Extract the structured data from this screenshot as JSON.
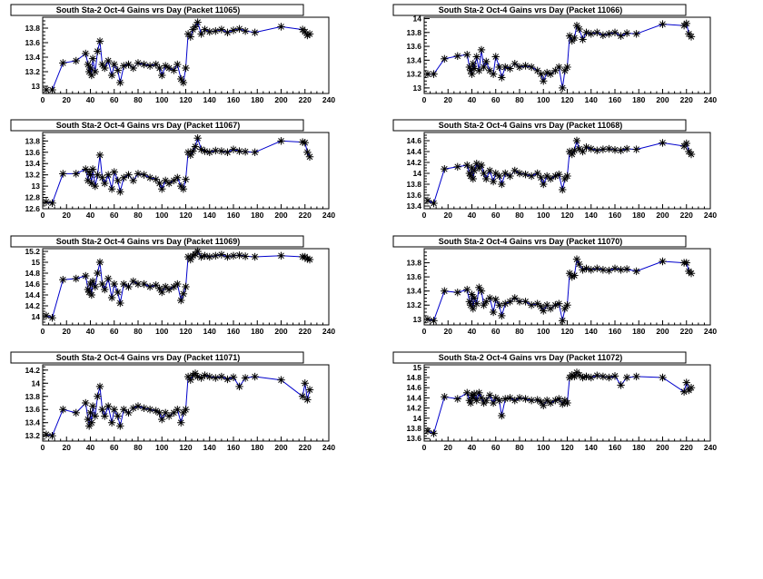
{
  "chart_data": [
    {
      "type": "scatter",
      "title": "South Sta-2 Oct-4 Gains vrs Day (Packet 11065)",
      "xlim": [
        0,
        240
      ],
      "ylim": [
        12.9,
        13.95
      ],
      "xticks": [
        0,
        20,
        40,
        60,
        80,
        100,
        120,
        140,
        160,
        180,
        200,
        220,
        240
      ],
      "yticks": [
        13,
        13.2,
        13.4,
        13.6,
        13.8
      ],
      "x": [
        3,
        8,
        17,
        28,
        36,
        38,
        39,
        40,
        41,
        42,
        44,
        46,
        48,
        50,
        52,
        55,
        58,
        60,
        63,
        65,
        68,
        72,
        76,
        80,
        85,
        90,
        95,
        98,
        100,
        103,
        106,
        110,
        113,
        116,
        118,
        120,
        122,
        124,
        126,
        128,
        130,
        133,
        136,
        140,
        145,
        150,
        155,
        160,
        165,
        170,
        178,
        200,
        218,
        220,
        222,
        224
      ],
      "y": [
        12.95,
        12.95,
        13.32,
        13.35,
        13.45,
        13.3,
        13.2,
        13.25,
        13.15,
        13.38,
        13.2,
        13.48,
        13.62,
        13.3,
        13.25,
        13.35,
        13.15,
        13.3,
        13.22,
        13.05,
        13.28,
        13.3,
        13.25,
        13.32,
        13.3,
        13.28,
        13.3,
        13.25,
        13.15,
        13.28,
        13.25,
        13.22,
        13.3,
        13.1,
        13.05,
        13.25,
        13.72,
        13.68,
        13.78,
        13.82,
        13.88,
        13.72,
        13.78,
        13.75,
        13.76,
        13.78,
        13.74,
        13.77,
        13.79,
        13.76,
        13.74,
        13.82,
        13.78,
        13.75,
        13.7,
        13.72
      ]
    },
    {
      "type": "scatter",
      "title": "South Sta-2 Oct-4 Gains vrs Day (Packet 11066)",
      "xlim": [
        0,
        240
      ],
      "ylim": [
        12.92,
        14.02
      ],
      "xticks": [
        0,
        20,
        40,
        60,
        80,
        100,
        120,
        140,
        160,
        180,
        200,
        220,
        240
      ],
      "yticks": [
        13,
        13.2,
        13.4,
        13.6,
        13.8,
        14
      ],
      "x": [
        3,
        8,
        17,
        28,
        36,
        38,
        39,
        40,
        41,
        42,
        44,
        46,
        48,
        50,
        52,
        55,
        58,
        60,
        63,
        65,
        68,
        72,
        76,
        80,
        85,
        90,
        95,
        98,
        100,
        103,
        106,
        110,
        113,
        116,
        118,
        120,
        122,
        124,
        126,
        128,
        130,
        133,
        136,
        140,
        145,
        150,
        155,
        160,
        165,
        170,
        178,
        200,
        218,
        220,
        222,
        224
      ],
      "y": [
        13.2,
        13.2,
        13.42,
        13.46,
        13.48,
        13.3,
        13.25,
        13.2,
        13.35,
        13.28,
        13.45,
        13.25,
        13.55,
        13.3,
        13.38,
        13.25,
        13.2,
        13.45,
        13.3,
        13.15,
        13.3,
        13.28,
        13.35,
        13.3,
        13.32,
        13.3,
        13.25,
        13.2,
        13.1,
        13.22,
        13.2,
        13.25,
        13.3,
        13.0,
        13.25,
        13.3,
        13.75,
        13.68,
        13.72,
        13.9,
        13.85,
        13.7,
        13.8,
        13.78,
        13.8,
        13.76,
        13.78,
        13.8,
        13.75,
        13.79,
        13.78,
        13.92,
        13.9,
        13.93,
        13.78,
        13.74
      ]
    },
    {
      "type": "scatter",
      "title": "South Sta-2 Oct-4 Gains vrs Day (Packet 11067)",
      "xlim": [
        0,
        240
      ],
      "ylim": [
        12.6,
        13.95
      ],
      "xticks": [
        0,
        20,
        40,
        60,
        80,
        100,
        120,
        140,
        160,
        180,
        200,
        220,
        240
      ],
      "yticks": [
        12.6,
        12.8,
        13,
        13.2,
        13.4,
        13.6,
        13.8
      ],
      "x": [
        3,
        8,
        17,
        28,
        36,
        38,
        39,
        40,
        41,
        42,
        44,
        46,
        48,
        50,
        52,
        55,
        58,
        60,
        63,
        65,
        68,
        72,
        76,
        80,
        85,
        90,
        95,
        98,
        100,
        103,
        106,
        110,
        113,
        116,
        118,
        120,
        122,
        124,
        126,
        128,
        130,
        133,
        136,
        140,
        145,
        150,
        155,
        160,
        165,
        170,
        178,
        200,
        218,
        220,
        222,
        224
      ],
      "y": [
        12.72,
        12.7,
        13.22,
        13.22,
        13.3,
        13.1,
        13.25,
        13.2,
        13.05,
        13.3,
        13.0,
        13.2,
        13.55,
        13.15,
        13.05,
        13.2,
        12.95,
        13.25,
        13.1,
        12.9,
        13.15,
        13.2,
        13.1,
        13.22,
        13.2,
        13.15,
        13.12,
        13.05,
        12.95,
        13.1,
        13.05,
        13.1,
        13.15,
        13.0,
        12.95,
        13.12,
        13.6,
        13.55,
        13.62,
        13.7,
        13.85,
        13.65,
        13.62,
        13.6,
        13.63,
        13.62,
        13.6,
        13.65,
        13.62,
        13.61,
        13.6,
        13.8,
        13.78,
        13.77,
        13.6,
        13.52
      ]
    },
    {
      "type": "scatter",
      "title": "South Sta-2 Oct-4 Gains vrs Day (Packet 11068)",
      "xlim": [
        0,
        240
      ],
      "ylim": [
        13.35,
        14.75
      ],
      "xticks": [
        0,
        20,
        40,
        60,
        80,
        100,
        120,
        140,
        160,
        180,
        200,
        220,
        240
      ],
      "yticks": [
        13.4,
        13.6,
        13.8,
        14,
        14.2,
        14.4,
        14.6
      ],
      "x": [
        3,
        8,
        17,
        28,
        36,
        38,
        39,
        40,
        41,
        42,
        44,
        46,
        48,
        50,
        52,
        55,
        58,
        60,
        63,
        65,
        68,
        72,
        76,
        80,
        85,
        90,
        95,
        98,
        100,
        103,
        106,
        110,
        113,
        116,
        118,
        120,
        122,
        124,
        126,
        128,
        130,
        133,
        136,
        140,
        145,
        150,
        155,
        160,
        165,
        170,
        178,
        200,
        218,
        220,
        222,
        224
      ],
      "y": [
        13.5,
        13.45,
        14.08,
        14.12,
        14.15,
        14.0,
        13.95,
        14.1,
        13.9,
        14.05,
        14.18,
        14.1,
        14.15,
        14.0,
        13.9,
        14.05,
        13.85,
        14.0,
        13.95,
        13.8,
        14.0,
        13.95,
        14.05,
        14.0,
        13.98,
        13.95,
        14.0,
        13.92,
        13.8,
        13.95,
        13.9,
        13.95,
        13.98,
        13.7,
        13.9,
        13.95,
        14.4,
        14.35,
        14.42,
        14.6,
        14.45,
        14.4,
        14.48,
        14.45,
        14.42,
        14.44,
        14.45,
        14.43,
        14.42,
        14.45,
        14.44,
        14.56,
        14.5,
        14.55,
        14.4,
        14.35
      ]
    },
    {
      "type": "scatter",
      "title": "South Sta-2 Oct-4 Gains vrs Day (Packet 11069)",
      "xlim": [
        0,
        240
      ],
      "ylim": [
        13.85,
        15.25
      ],
      "xticks": [
        0,
        20,
        40,
        60,
        80,
        100,
        120,
        140,
        160,
        180,
        200,
        220,
        240
      ],
      "yticks": [
        14,
        14.2,
        14.4,
        14.6,
        14.8,
        15,
        15.2
      ],
      "x": [
        3,
        8,
        17,
        28,
        36,
        38,
        39,
        40,
        41,
        42,
        44,
        46,
        48,
        50,
        52,
        55,
        58,
        60,
        63,
        65,
        68,
        72,
        76,
        80,
        85,
        90,
        95,
        98,
        100,
        103,
        106,
        110,
        113,
        116,
        118,
        120,
        122,
        124,
        126,
        128,
        130,
        133,
        136,
        140,
        145,
        150,
        155,
        160,
        165,
        170,
        178,
        200,
        218,
        220,
        222,
        224
      ],
      "y": [
        14.02,
        13.98,
        14.68,
        14.7,
        14.75,
        14.5,
        14.45,
        14.6,
        14.4,
        14.65,
        14.55,
        14.8,
        15.0,
        14.6,
        14.5,
        14.7,
        14.35,
        14.6,
        14.45,
        14.25,
        14.6,
        14.55,
        14.65,
        14.6,
        14.6,
        14.55,
        14.58,
        14.52,
        14.45,
        14.55,
        14.5,
        14.55,
        14.6,
        14.3,
        14.42,
        14.55,
        15.1,
        15.05,
        15.12,
        15.15,
        15.2,
        15.1,
        15.12,
        15.1,
        15.12,
        15.14,
        15.1,
        15.12,
        15.13,
        15.11,
        15.1,
        15.12,
        15.1,
        15.1,
        15.06,
        15.05
      ]
    },
    {
      "type": "scatter",
      "title": "South Sta-2 Oct-4 Gains vrs Day (Packet 11070)",
      "xlim": [
        0,
        240
      ],
      "ylim": [
        12.92,
        14.0
      ],
      "xticks": [
        0,
        20,
        40,
        60,
        80,
        100,
        120,
        140,
        160,
        180,
        200,
        220,
        240
      ],
      "yticks": [
        13,
        13.2,
        13.4,
        13.6,
        13.8
      ],
      "x": [
        3,
        8,
        17,
        28,
        36,
        38,
        39,
        40,
        41,
        42,
        44,
        46,
        48,
        50,
        52,
        55,
        58,
        60,
        63,
        65,
        68,
        72,
        76,
        80,
        85,
        90,
        95,
        98,
        100,
        103,
        106,
        110,
        113,
        116,
        118,
        120,
        122,
        124,
        126,
        128,
        130,
        133,
        136,
        140,
        145,
        150,
        155,
        160,
        165,
        170,
        178,
        200,
        218,
        220,
        222,
        224
      ],
      "y": [
        13.0,
        12.98,
        13.4,
        13.38,
        13.42,
        13.25,
        13.2,
        13.35,
        13.15,
        13.3,
        13.22,
        13.45,
        13.4,
        13.2,
        13.25,
        13.3,
        13.1,
        13.28,
        13.2,
        13.05,
        13.22,
        13.25,
        13.3,
        13.25,
        13.25,
        13.2,
        13.22,
        13.18,
        13.12,
        13.2,
        13.15,
        13.2,
        13.22,
        12.98,
        13.15,
        13.2,
        13.65,
        13.6,
        13.62,
        13.85,
        13.78,
        13.7,
        13.72,
        13.7,
        13.72,
        13.7,
        13.69,
        13.72,
        13.7,
        13.71,
        13.68,
        13.82,
        13.8,
        13.8,
        13.68,
        13.65
      ]
    },
    {
      "type": "scatter",
      "title": "South Sta-2 Oct-4 Gains vrs Day (Packet 11071)",
      "xlim": [
        0,
        240
      ],
      "ylim": [
        13.12,
        14.28
      ],
      "xticks": [
        0,
        20,
        40,
        60,
        80,
        100,
        120,
        140,
        160,
        180,
        200,
        220,
        240
      ],
      "yticks": [
        13.2,
        13.4,
        13.6,
        13.8,
        14,
        14.2
      ],
      "x": [
        3,
        8,
        17,
        28,
        36,
        38,
        39,
        40,
        41,
        42,
        44,
        46,
        48,
        50,
        52,
        55,
        58,
        60,
        63,
        65,
        68,
        72,
        76,
        80,
        85,
        90,
        95,
        98,
        100,
        103,
        106,
        110,
        113,
        116,
        118,
        120,
        122,
        124,
        126,
        128,
        130,
        133,
        136,
        140,
        145,
        150,
        155,
        160,
        165,
        170,
        178,
        200,
        218,
        220,
        222,
        224
      ],
      "y": [
        13.22,
        13.2,
        13.6,
        13.55,
        13.7,
        13.45,
        13.35,
        13.55,
        13.4,
        13.65,
        13.5,
        13.8,
        13.95,
        13.6,
        13.5,
        13.65,
        13.4,
        13.6,
        13.5,
        13.35,
        13.6,
        13.55,
        13.62,
        13.65,
        13.62,
        13.6,
        13.58,
        13.55,
        13.45,
        13.55,
        13.5,
        13.55,
        13.6,
        13.4,
        13.55,
        13.6,
        14.1,
        14.05,
        14.12,
        14.15,
        14.1,
        14.08,
        14.12,
        14.1,
        14.08,
        14.1,
        14.06,
        14.09,
        13.95,
        14.08,
        14.1,
        14.05,
        13.8,
        14.0,
        13.75,
        13.9
      ]
    },
    {
      "type": "scatter",
      "title": "South Sta-2 Oct-4 Gains vrs Day (Packet 11072)",
      "xlim": [
        0,
        240
      ],
      "ylim": [
        13.55,
        15.05
      ],
      "xticks": [
        0,
        20,
        40,
        60,
        80,
        100,
        120,
        140,
        160,
        180,
        200,
        220,
        240
      ],
      "yticks": [
        13.6,
        13.8,
        14,
        14.2,
        14.4,
        14.6,
        14.8,
        15
      ],
      "x": [
        3,
        8,
        17,
        28,
        36,
        38,
        39,
        40,
        41,
        42,
        44,
        46,
        48,
        50,
        52,
        55,
        58,
        60,
        63,
        65,
        68,
        72,
        76,
        80,
        85,
        90,
        95,
        98,
        100,
        103,
        106,
        110,
        113,
        116,
        118,
        120,
        122,
        124,
        126,
        128,
        130,
        133,
        136,
        140,
        145,
        150,
        155,
        160,
        165,
        170,
        178,
        200,
        218,
        220,
        222,
        224
      ],
      "y": [
        13.75,
        13.7,
        14.42,
        14.38,
        14.5,
        14.35,
        14.3,
        14.45,
        14.4,
        14.48,
        14.35,
        14.5,
        14.4,
        14.3,
        14.35,
        14.45,
        14.3,
        14.4,
        14.35,
        14.05,
        14.38,
        14.4,
        14.35,
        14.4,
        14.38,
        14.35,
        14.36,
        14.32,
        14.25,
        14.35,
        14.3,
        14.35,
        14.38,
        14.28,
        14.35,
        14.3,
        14.8,
        14.85,
        14.82,
        14.9,
        14.85,
        14.8,
        14.82,
        14.8,
        14.84,
        14.82,
        14.8,
        14.83,
        14.65,
        14.8,
        14.82,
        14.8,
        14.52,
        14.7,
        14.55,
        14.6
      ]
    }
  ]
}
